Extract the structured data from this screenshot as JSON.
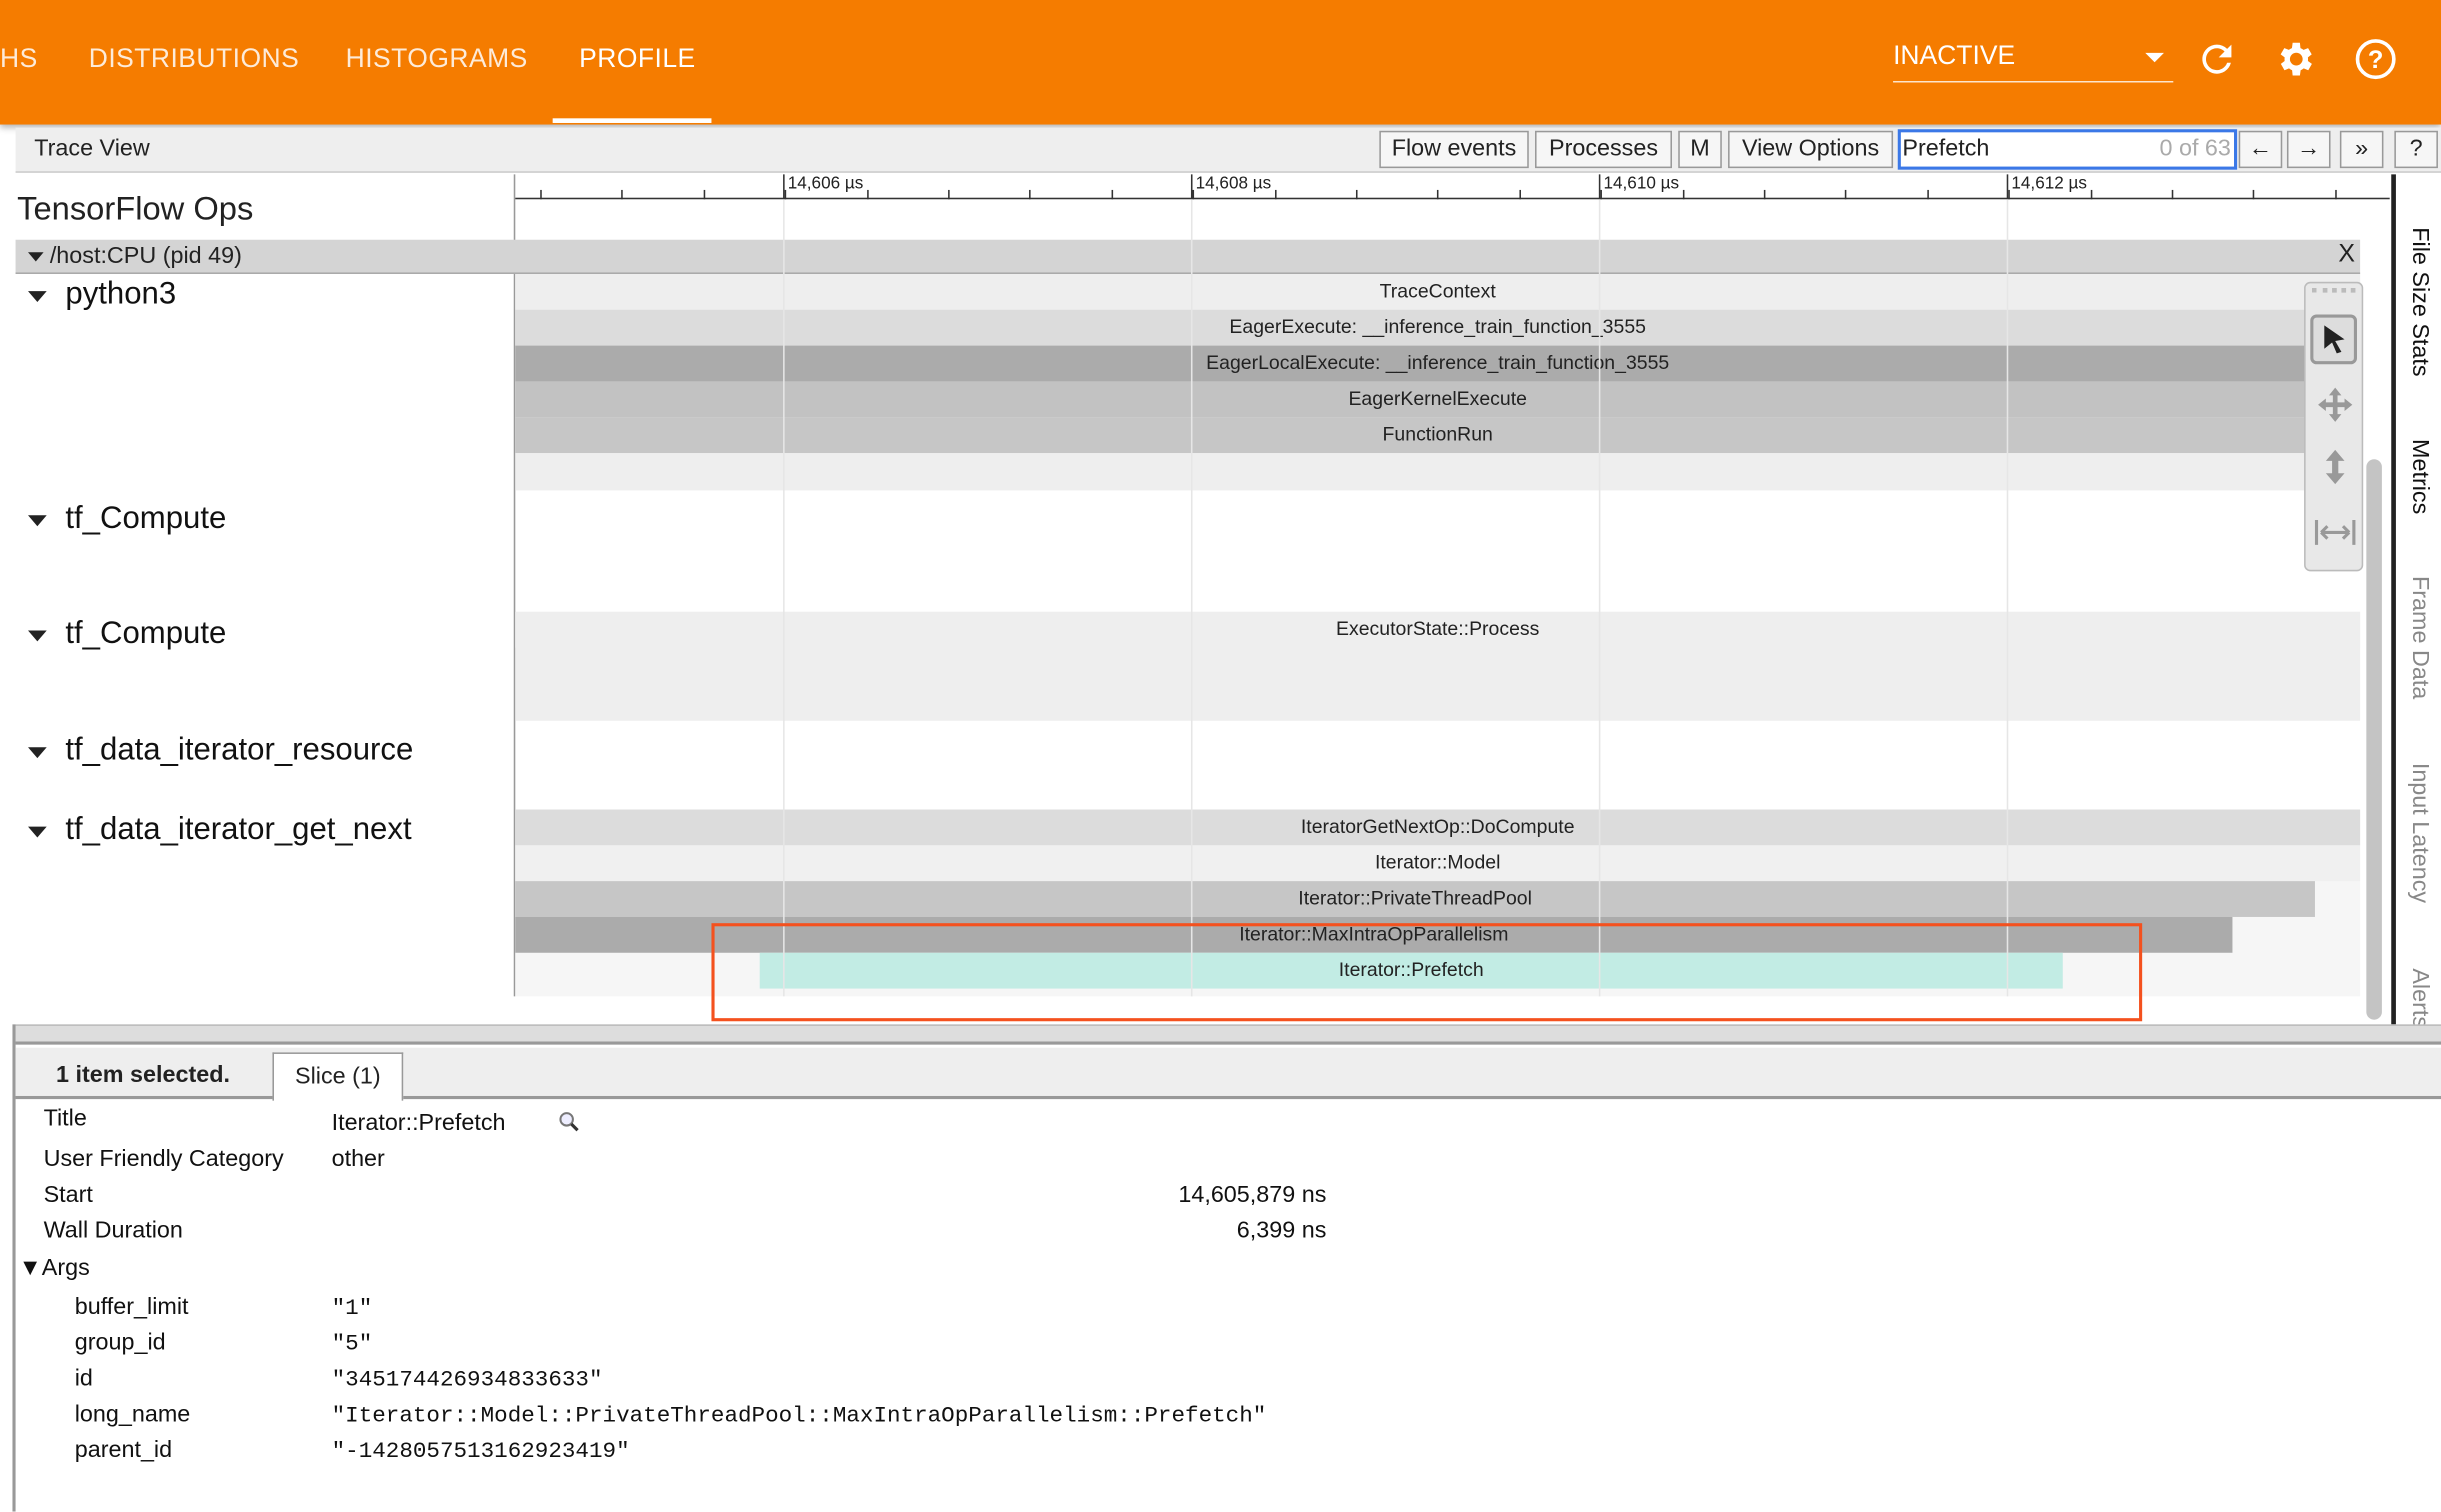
{
  "nav": {
    "tabs": [
      {
        "label": "HS"
      },
      {
        "label": "DISTRIBUTIONS"
      },
      {
        "label": "HISTOGRAMS"
      },
      {
        "label": "PROFILE",
        "active": true
      }
    ],
    "run_select": "INACTIVE",
    "icons": [
      "refresh-icon",
      "gear-icon",
      "help-icon"
    ],
    "accent": "#f57c00"
  },
  "toolbar": {
    "title": "Trace View",
    "flow_events": "Flow events",
    "processes": "Processes",
    "m": "M",
    "view_options": "View Options",
    "search_value": "Prefetch",
    "search_count": "0 of 63",
    "prev": "←",
    "next": "→",
    "more": "»",
    "help": "?"
  },
  "timeline": {
    "section": "TensorFlow Ops",
    "ticks": [
      "14,606 µs",
      "14,608 µs",
      "14,610 µs",
      "14,612 µs"
    ],
    "process": "/host:CPU (pid 49)",
    "close": "X",
    "threads": [
      "python3",
      "tf_Compute",
      "tf_Compute",
      "tf_data_iterator_resource",
      "tf_data_iterator_get_next"
    ],
    "slices": {
      "trace_context": "TraceContext",
      "eager_execute": "EagerExecute: __inference_train_function_3555",
      "eager_local": "EagerLocalExecute: __inference_train_function_3555",
      "eager_kernel": "EagerKernelExecute",
      "function_run": "FunctionRun",
      "executor": "ExecutorState::Process",
      "get_next": "IteratorGetNextOp::DoCompute",
      "model": "Iterator::Model",
      "private_pool": "Iterator::PrivateThreadPool",
      "max_intra": "Iterator::MaxIntraOpParallelism",
      "prefetch": "Iterator::Prefetch"
    },
    "highlight_color": "#c2ece4",
    "selection_box_color": "#f4511e"
  },
  "side_tabs": [
    "File Size Stats",
    "Metrics",
    "Frame Data",
    "Input Latency",
    "Alerts"
  ],
  "details": {
    "summary": "1 item selected.",
    "tab": "Slice (1)",
    "rows": [
      {
        "k": "Title",
        "v": "Iterator::Prefetch"
      },
      {
        "k": "User Friendly Category",
        "v": "other"
      },
      {
        "k": "Start",
        "v": "14,605,879 ns"
      },
      {
        "k": "Wall Duration",
        "v": "6,399 ns"
      }
    ],
    "args_label": "▼Args",
    "args": [
      {
        "k": "buffer_limit",
        "v": "\"1\""
      },
      {
        "k": "group_id",
        "v": "\"5\""
      },
      {
        "k": "id",
        "v": "\"345174426934833633\""
      },
      {
        "k": "long_name",
        "v": "\"Iterator::Model::PrivateThreadPool::MaxIntraOpParallelism::Prefetch\""
      },
      {
        "k": "parent_id",
        "v": "\"-1428057513162923419\""
      }
    ]
  }
}
